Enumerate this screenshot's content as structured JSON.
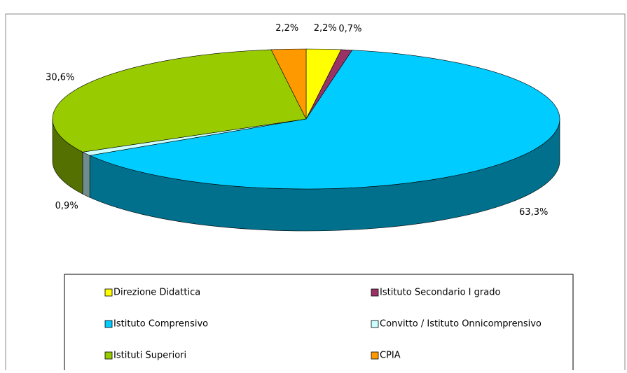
{
  "chart_data": {
    "type": "pie",
    "categories": [
      "Direzione Didattica",
      "Istituto Secondario I grado",
      "Istituto Comprensivo",
      "Convitto / Istituto Onnicomprensivo",
      "Istituti Superiori",
      "CPIA"
    ],
    "values": [
      2.2,
      0.7,
      63.3,
      0.9,
      30.6,
      2.2
    ],
    "value_labels": [
      "2,2%",
      "0,7%",
      "63,3%",
      "0,9%",
      "30,6%",
      "2,2%"
    ],
    "colors": [
      "#ffff00",
      "#993366",
      "#00ccff",
      "#ccffff",
      "#99cc00",
      "#ff9900"
    ],
    "legend": "bottom"
  }
}
